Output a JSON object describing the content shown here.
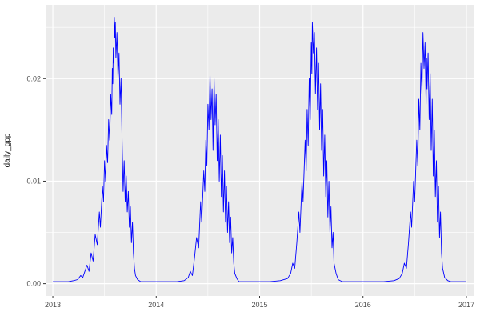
{
  "chart_data": {
    "type": "line",
    "title": "",
    "xlabel": "",
    "ylabel": "daily_gpp",
    "legend": false,
    "grid": true,
    "x_ticks": [
      2013,
      2014,
      2015,
      2016,
      2017
    ],
    "x_tick_labels": [
      "2013",
      "2014",
      "2015",
      "2016",
      "2017"
    ],
    "y_ticks": [
      0,
      0.01,
      0.02
    ],
    "y_tick_labels": [
      "0.00",
      "0.01",
      "0.02"
    ],
    "xlim": [
      2012.93,
      2017.07
    ],
    "ylim": [
      -0.0012,
      0.0272
    ],
    "colors": {
      "line": "#0000FF",
      "panel_background": "#EBEBEB",
      "grid": "#FFFFFF",
      "tick_mark": "#333333",
      "axis_text": "#4D4D4D",
      "figure_background": "#FFFFFF"
    },
    "series": [
      {
        "name": "daily_gpp",
        "points": [
          [
            2013.0,
            0.0002
          ],
          [
            2013.05,
            0.0002
          ],
          [
            2013.1,
            0.0002
          ],
          [
            2013.15,
            0.0002
          ],
          [
            2013.2,
            0.0003
          ],
          [
            2013.24,
            0.0004
          ],
          [
            2013.27,
            0.0008
          ],
          [
            2013.29,
            0.0006
          ],
          [
            2013.31,
            0.0012
          ],
          [
            2013.33,
            0.0018
          ],
          [
            2013.35,
            0.0012
          ],
          [
            2013.37,
            0.003
          ],
          [
            2013.39,
            0.0022
          ],
          [
            2013.41,
            0.0048
          ],
          [
            2013.43,
            0.0038
          ],
          [
            2013.45,
            0.007
          ],
          [
            2013.46,
            0.0055
          ],
          [
            2013.48,
            0.0095
          ],
          [
            2013.49,
            0.008
          ],
          [
            2013.5,
            0.012
          ],
          [
            2013.51,
            0.01
          ],
          [
            2013.52,
            0.0135
          ],
          [
            2013.53,
            0.0118
          ],
          [
            2013.54,
            0.016
          ],
          [
            2013.55,
            0.014
          ],
          [
            2013.56,
            0.0185
          ],
          [
            2013.57,
            0.0165
          ],
          [
            2013.575,
            0.021
          ],
          [
            2013.58,
            0.0195
          ],
          [
            2013.585,
            0.023
          ],
          [
            2013.59,
            0.0215
          ],
          [
            2013.595,
            0.026
          ],
          [
            2013.6,
            0.024
          ],
          [
            2013.605,
            0.0255
          ],
          [
            2013.61,
            0.022
          ],
          [
            2013.62,
            0.0245
          ],
          [
            2013.63,
            0.02
          ],
          [
            2013.64,
            0.0225
          ],
          [
            2013.65,
            0.0175
          ],
          [
            2013.66,
            0.02
          ],
          [
            2013.67,
            0.014
          ],
          [
            2013.68,
            0.009
          ],
          [
            2013.69,
            0.012
          ],
          [
            2013.7,
            0.008
          ],
          [
            2013.71,
            0.0105
          ],
          [
            2013.72,
            0.007
          ],
          [
            2013.73,
            0.009
          ],
          [
            2013.74,
            0.0055
          ],
          [
            2013.75,
            0.0075
          ],
          [
            2013.76,
            0.004
          ],
          [
            2013.77,
            0.006
          ],
          [
            2013.78,
            0.003
          ],
          [
            2013.79,
            0.0015
          ],
          [
            2013.8,
            0.0008
          ],
          [
            2013.82,
            0.0004
          ],
          [
            2013.85,
            0.0002
          ],
          [
            2013.9,
            0.0002
          ],
          [
            2013.95,
            0.0002
          ],
          [
            2014.0,
            0.0002
          ],
          [
            2014.1,
            0.0002
          ],
          [
            2014.2,
            0.0002
          ],
          [
            2014.27,
            0.0003
          ],
          [
            2014.31,
            0.0006
          ],
          [
            2014.33,
            0.0012
          ],
          [
            2014.35,
            0.0008
          ],
          [
            2014.37,
            0.0025
          ],
          [
            2014.39,
            0.0045
          ],
          [
            2014.41,
            0.0035
          ],
          [
            2014.43,
            0.008
          ],
          [
            2014.44,
            0.006
          ],
          [
            2014.46,
            0.011
          ],
          [
            2014.47,
            0.009
          ],
          [
            2014.48,
            0.014
          ],
          [
            2014.49,
            0.0115
          ],
          [
            2014.5,
            0.0175
          ],
          [
            2014.51,
            0.015
          ],
          [
            2014.52,
            0.0205
          ],
          [
            2014.53,
            0.016
          ],
          [
            2014.54,
            0.019
          ],
          [
            2014.55,
            0.013
          ],
          [
            2014.56,
            0.02
          ],
          [
            2014.57,
            0.0155
          ],
          [
            2014.58,
            0.0185
          ],
          [
            2014.59,
            0.012
          ],
          [
            2014.6,
            0.016
          ],
          [
            2014.61,
            0.01
          ],
          [
            2014.62,
            0.0145
          ],
          [
            2014.63,
            0.0085
          ],
          [
            2014.64,
            0.0125
          ],
          [
            2014.65,
            0.007
          ],
          [
            2014.66,
            0.011
          ],
          [
            2014.67,
            0.006
          ],
          [
            2014.68,
            0.0095
          ],
          [
            2014.69,
            0.005
          ],
          [
            2014.7,
            0.008
          ],
          [
            2014.71,
            0.004
          ],
          [
            2014.72,
            0.0065
          ],
          [
            2014.73,
            0.003
          ],
          [
            2014.74,
            0.0045
          ],
          [
            2014.75,
            0.002
          ],
          [
            2014.76,
            0.001
          ],
          [
            2014.78,
            0.0005
          ],
          [
            2014.8,
            0.0002
          ],
          [
            2014.9,
            0.0002
          ],
          [
            2015.0,
            0.0002
          ],
          [
            2015.1,
            0.0002
          ],
          [
            2015.2,
            0.0003
          ],
          [
            2015.27,
            0.0005
          ],
          [
            2015.3,
            0.001
          ],
          [
            2015.32,
            0.002
          ],
          [
            2015.34,
            0.0015
          ],
          [
            2015.36,
            0.004
          ],
          [
            2015.38,
            0.007
          ],
          [
            2015.39,
            0.005
          ],
          [
            2015.41,
            0.01
          ],
          [
            2015.42,
            0.008
          ],
          [
            2015.44,
            0.014
          ],
          [
            2015.45,
            0.011
          ],
          [
            2015.46,
            0.017
          ],
          [
            2015.47,
            0.0135
          ],
          [
            2015.48,
            0.02
          ],
          [
            2015.49,
            0.016
          ],
          [
            2015.5,
            0.0235
          ],
          [
            2015.505,
            0.0205
          ],
          [
            2015.51,
            0.0255
          ],
          [
            2015.52,
            0.0225
          ],
          [
            2015.53,
            0.0245
          ],
          [
            2015.54,
            0.0185
          ],
          [
            2015.55,
            0.023
          ],
          [
            2015.56,
            0.017
          ],
          [
            2015.57,
            0.0215
          ],
          [
            2015.58,
            0.015
          ],
          [
            2015.59,
            0.0195
          ],
          [
            2015.6,
            0.013
          ],
          [
            2015.61,
            0.017
          ],
          [
            2015.62,
            0.0105
          ],
          [
            2015.63,
            0.0145
          ],
          [
            2015.64,
            0.0085
          ],
          [
            2015.65,
            0.012
          ],
          [
            2015.66,
            0.0065
          ],
          [
            2015.67,
            0.01
          ],
          [
            2015.68,
            0.005
          ],
          [
            2015.69,
            0.0075
          ],
          [
            2015.7,
            0.0035
          ],
          [
            2015.71,
            0.005
          ],
          [
            2015.72,
            0.002
          ],
          [
            2015.74,
            0.001
          ],
          [
            2015.76,
            0.0004
          ],
          [
            2015.8,
            0.0002
          ],
          [
            2015.9,
            0.0002
          ],
          [
            2016.0,
            0.0002
          ],
          [
            2016.1,
            0.0002
          ],
          [
            2016.2,
            0.0002
          ],
          [
            2016.3,
            0.0003
          ],
          [
            2016.35,
            0.0005
          ],
          [
            2016.38,
            0.001
          ],
          [
            2016.4,
            0.002
          ],
          [
            2016.42,
            0.0015
          ],
          [
            2016.44,
            0.004
          ],
          [
            2016.46,
            0.007
          ],
          [
            2016.47,
            0.0055
          ],
          [
            2016.49,
            0.01
          ],
          [
            2016.5,
            0.008
          ],
          [
            2016.52,
            0.014
          ],
          [
            2016.53,
            0.0115
          ],
          [
            2016.54,
            0.018
          ],
          [
            2016.55,
            0.015
          ],
          [
            2016.56,
            0.0215
          ],
          [
            2016.57,
            0.0185
          ],
          [
            2016.58,
            0.0245
          ],
          [
            2016.59,
            0.021
          ],
          [
            2016.6,
            0.0235
          ],
          [
            2016.61,
            0.0175
          ],
          [
            2016.615,
            0.022
          ],
          [
            2016.62,
            0.019
          ],
          [
            2016.63,
            0.0225
          ],
          [
            2016.64,
            0.016
          ],
          [
            2016.65,
            0.0205
          ],
          [
            2016.66,
            0.013
          ],
          [
            2016.67,
            0.018
          ],
          [
            2016.68,
            0.0105
          ],
          [
            2016.69,
            0.015
          ],
          [
            2016.7,
            0.0085
          ],
          [
            2016.71,
            0.012
          ],
          [
            2016.72,
            0.006
          ],
          [
            2016.73,
            0.0095
          ],
          [
            2016.74,
            0.0045
          ],
          [
            2016.75,
            0.007
          ],
          [
            2016.76,
            0.003
          ],
          [
            2016.77,
            0.0015
          ],
          [
            2016.79,
            0.0006
          ],
          [
            2016.82,
            0.0003
          ],
          [
            2016.85,
            0.0002
          ],
          [
            2016.9,
            0.0002
          ],
          [
            2016.95,
            0.0002
          ],
          [
            2017.0,
            0.0002
          ]
        ]
      }
    ]
  }
}
